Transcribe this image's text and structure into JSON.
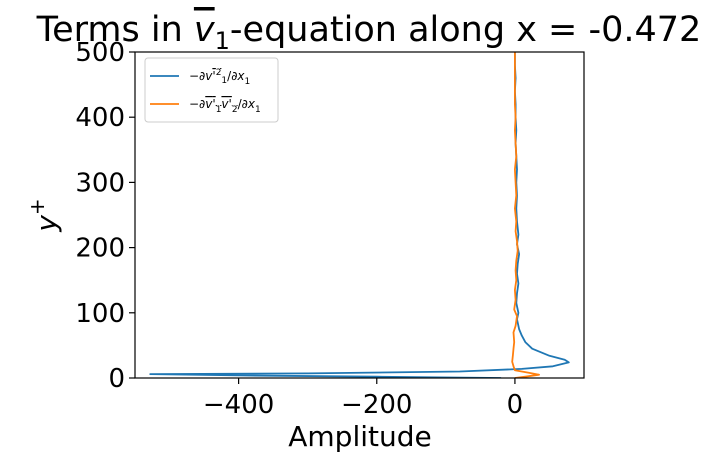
{
  "chart_data": {
    "type": "line",
    "title_parts": {
      "prefix": "Terms in ",
      "symbol": "v",
      "subscript": "1",
      "suffix": "-equation along x = -0.472"
    },
    "xlabel": "Amplitude",
    "ylabel": "y",
    "ylabel_sup": "+",
    "xlim": [
      -550,
      100
    ],
    "ylim": [
      0,
      500
    ],
    "xticks": [
      -400,
      -200,
      0
    ],
    "xtick_labels": [
      "−400",
      "−200",
      "0"
    ],
    "yticks": [
      0,
      100,
      200,
      300,
      400,
      500
    ],
    "ytick_labels": [
      "0",
      "100",
      "200",
      "300",
      "400",
      "500"
    ],
    "grid": false,
    "legend_position": "top-left",
    "series": [
      {
        "name": "−∂̅v'²₁/∂x₁",
        "color": "#1f77b4",
        "points": [
          [
            -20,
            0
          ],
          [
            -200,
            2
          ],
          [
            -400,
            4
          ],
          [
            -528,
            6
          ],
          [
            -300,
            7
          ],
          [
            -80,
            10
          ],
          [
            10,
            14
          ],
          [
            55,
            18
          ],
          [
            78,
            24
          ],
          [
            72,
            28
          ],
          [
            50,
            34
          ],
          [
            25,
            45
          ],
          [
            15,
            55
          ],
          [
            10,
            65
          ],
          [
            6,
            75
          ],
          [
            3,
            90
          ],
          [
            5,
            100
          ],
          [
            2,
            115
          ],
          [
            3,
            130
          ],
          [
            5,
            145
          ],
          [
            3,
            160
          ],
          [
            4,
            175
          ],
          [
            6,
            190
          ],
          [
            3,
            205
          ],
          [
            5,
            220
          ],
          [
            3,
            240
          ],
          [
            2,
            260
          ],
          [
            3,
            280
          ],
          [
            2,
            300
          ],
          [
            3,
            320
          ],
          [
            2,
            340
          ],
          [
            1,
            360
          ],
          [
            2,
            380
          ],
          [
            1,
            400
          ],
          [
            1,
            420
          ],
          [
            0,
            440
          ],
          [
            1,
            460
          ],
          [
            0,
            480
          ],
          [
            0,
            500
          ]
        ]
      },
      {
        "name": "−∂̅v'₁v'₂/∂x₁",
        "color": "#ff7f0e",
        "points": [
          [
            0,
            0
          ],
          [
            15,
            2
          ],
          [
            35,
            5
          ],
          [
            20,
            8
          ],
          [
            0,
            12
          ],
          [
            -2,
            18
          ],
          [
            -4,
            25
          ],
          [
            -3,
            35
          ],
          [
            -2,
            45
          ],
          [
            -1,
            55
          ],
          [
            -2,
            70
          ],
          [
            1,
            80
          ],
          [
            3,
            95
          ],
          [
            -1,
            105
          ],
          [
            1,
            120
          ],
          [
            0,
            135
          ],
          [
            2,
            150
          ],
          [
            1,
            165
          ],
          [
            2,
            180
          ],
          [
            4,
            195
          ],
          [
            3,
            210
          ],
          [
            1,
            225
          ],
          [
            2,
            240
          ],
          [
            0,
            260
          ],
          [
            2,
            280
          ],
          [
            1,
            300
          ],
          [
            0,
            320
          ],
          [
            2,
            340
          ],
          [
            1,
            360
          ],
          [
            0,
            380
          ],
          [
            1,
            400
          ],
          [
            0,
            420
          ],
          [
            0,
            440
          ],
          [
            0,
            460
          ],
          [
            0,
            480
          ],
          [
            0,
            500
          ]
        ]
      }
    ]
  }
}
